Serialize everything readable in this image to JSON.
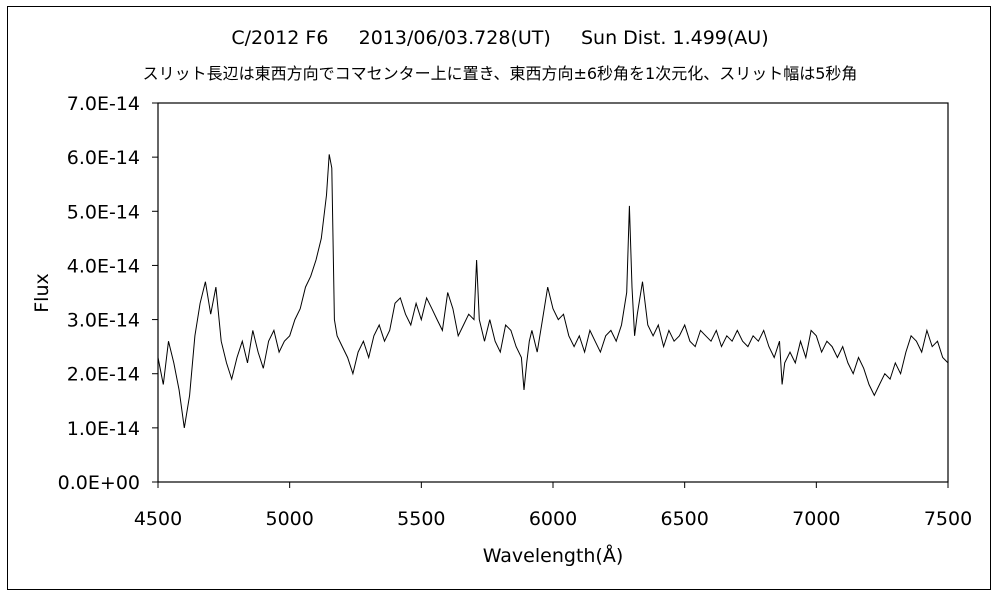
{
  "chart_data": {
    "type": "line",
    "title": "C/2012 F6     2013/06/03.728(UT)     Sun Dist. 1.499(AU)",
    "subtitle": "スリット長辺は東西方向でコマセンター上に置き、東西方向±6秒角を1次元化、スリット幅は5秒角",
    "xlabel": "Wavelength(Å)",
    "ylabel": "Flux",
    "xlim": [
      4500,
      7500
    ],
    "ylim": [
      0,
      7e-14
    ],
    "x_ticks": [
      4500,
      5000,
      5500,
      6000,
      6500,
      7000,
      7500
    ],
    "x_tick_labels": [
      "4500",
      "5000",
      "5500",
      "6000",
      "6500",
      "7000",
      "7500"
    ],
    "y_ticks": [
      0,
      1e-14,
      2e-14,
      3e-14,
      4e-14,
      5e-14,
      6e-14,
      7e-14
    ],
    "y_tick_labels": [
      "0.0E+00",
      "1.0E-14",
      "2.0E-14",
      "3.0E-14",
      "4.0E-14",
      "5.0E-14",
      "6.0E-14",
      "7.0E-14"
    ],
    "grid": false,
    "legend": "none",
    "line_color": "#000000",
    "x": [
      4500,
      4520,
      4540,
      4560,
      4580,
      4600,
      4620,
      4640,
      4660,
      4680,
      4700,
      4720,
      4740,
      4760,
      4780,
      4800,
      4820,
      4840,
      4860,
      4880,
      4900,
      4920,
      4940,
      4960,
      4980,
      5000,
      5020,
      5040,
      5060,
      5080,
      5100,
      5120,
      5140,
      5150,
      5160,
      5170,
      5180,
      5200,
      5220,
      5240,
      5260,
      5280,
      5300,
      5320,
      5340,
      5360,
      5380,
      5400,
      5420,
      5440,
      5460,
      5480,
      5500,
      5520,
      5540,
      5560,
      5580,
      5600,
      5620,
      5640,
      5660,
      5680,
      5700,
      5710,
      5720,
      5730,
      5740,
      5760,
      5780,
      5800,
      5820,
      5840,
      5860,
      5880,
      5890,
      5900,
      5910,
      5920,
      5940,
      5960,
      5980,
      6000,
      6020,
      6040,
      6060,
      6080,
      6100,
      6120,
      6140,
      6160,
      6180,
      6200,
      6220,
      6240,
      6260,
      6280,
      6290,
      6300,
      6310,
      6320,
      6340,
      6360,
      6380,
      6400,
      6420,
      6440,
      6460,
      6480,
      6500,
      6520,
      6540,
      6560,
      6580,
      6600,
      6620,
      6640,
      6660,
      6680,
      6700,
      6720,
      6740,
      6760,
      6780,
      6800,
      6820,
      6840,
      6860,
      6870,
      6880,
      6900,
      6920,
      6940,
      6960,
      6980,
      7000,
      7020,
      7040,
      7060,
      7080,
      7100,
      7120,
      7140,
      7160,
      7180,
      7200,
      7220,
      7240,
      7260,
      7280,
      7300,
      7320,
      7340,
      7360,
      7380,
      7400,
      7420,
      7440,
      7460,
      7480,
      7500
    ],
    "y": [
      2.3e-14,
      1.8e-14,
      2.6e-14,
      2.2e-14,
      1.7e-14,
      1e-14,
      1.6e-14,
      2.7e-14,
      3.3e-14,
      3.7e-14,
      3.1e-14,
      3.6e-14,
      2.6e-14,
      2.2e-14,
      1.9e-14,
      2.3e-14,
      2.6e-14,
      2.2e-14,
      2.8e-14,
      2.4e-14,
      2.1e-14,
      2.6e-14,
      2.8e-14,
      2.4e-14,
      2.6e-14,
      2.7e-14,
      3e-14,
      3.2e-14,
      3.6e-14,
      3.8e-14,
      4.1e-14,
      4.5e-14,
      5.3e-14,
      6.05e-14,
      5.8e-14,
      3e-14,
      2.7e-14,
      2.5e-14,
      2.3e-14,
      2e-14,
      2.4e-14,
      2.6e-14,
      2.3e-14,
      2.7e-14,
      2.9e-14,
      2.6e-14,
      2.8e-14,
      3.3e-14,
      3.4e-14,
      3.1e-14,
      2.9e-14,
      3.3e-14,
      3e-14,
      3.4e-14,
      3.2e-14,
      3e-14,
      2.8e-14,
      3.5e-14,
      3.2e-14,
      2.7e-14,
      2.9e-14,
      3.1e-14,
      3e-14,
      4.1e-14,
      3e-14,
      2.8e-14,
      2.6e-14,
      3e-14,
      2.6e-14,
      2.4e-14,
      2.9e-14,
      2.8e-14,
      2.5e-14,
      2.3e-14,
      1.7e-14,
      2.2e-14,
      2.6e-14,
      2.8e-14,
      2.4e-14,
      3e-14,
      3.6e-14,
      3.2e-14,
      3e-14,
      3.1e-14,
      2.7e-14,
      2.5e-14,
      2.7e-14,
      2.4e-14,
      2.8e-14,
      2.6e-14,
      2.4e-14,
      2.7e-14,
      2.8e-14,
      2.6e-14,
      2.9e-14,
      3.5e-14,
      5.1e-14,
      3.6e-14,
      2.7e-14,
      3.1e-14,
      3.7e-14,
      2.9e-14,
      2.7e-14,
      2.9e-14,
      2.5e-14,
      2.8e-14,
      2.6e-14,
      2.7e-14,
      2.9e-14,
      2.6e-14,
      2.5e-14,
      2.8e-14,
      2.7e-14,
      2.6e-14,
      2.8e-14,
      2.5e-14,
      2.7e-14,
      2.6e-14,
      2.8e-14,
      2.6e-14,
      2.5e-14,
      2.7e-14,
      2.6e-14,
      2.8e-14,
      2.5e-14,
      2.3e-14,
      2.6e-14,
      1.8e-14,
      2.2e-14,
      2.4e-14,
      2.2e-14,
      2.6e-14,
      2.3e-14,
      2.8e-14,
      2.7e-14,
      2.4e-14,
      2.6e-14,
      2.5e-14,
      2.3e-14,
      2.5e-14,
      2.2e-14,
      2e-14,
      2.3e-14,
      2.1e-14,
      1.8e-14,
      1.6e-14,
      1.8e-14,
      2e-14,
      1.9e-14,
      2.2e-14,
      2e-14,
      2.4e-14,
      2.7e-14,
      2.6e-14,
      2.4e-14,
      2.8e-14,
      2.5e-14,
      2.6e-14,
      2.3e-14,
      2.2e-14
    ]
  }
}
